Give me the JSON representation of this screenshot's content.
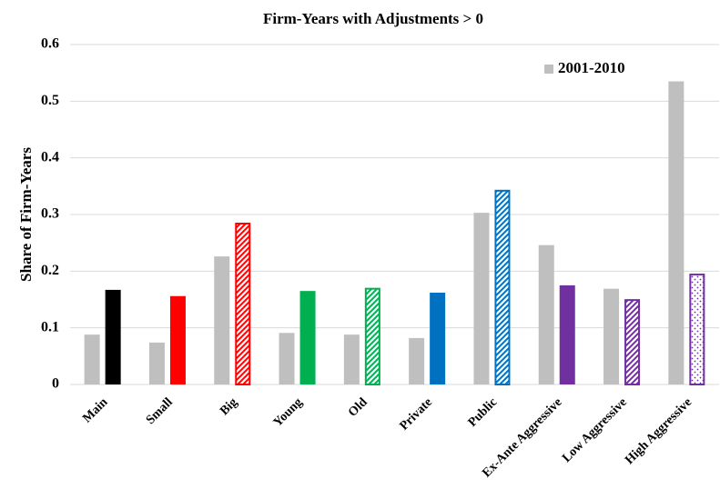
{
  "chart_data": {
    "type": "bar",
    "title": "Firm-Years with Adjustments > 0",
    "y_label": "Share of Firm-Years",
    "categories": [
      "Main",
      "Small",
      "Big",
      "Young",
      "Old",
      "Private",
      "Public",
      "Ex-Ante Aggressive",
      "Low Aggressive",
      "High Aggressive"
    ],
    "series": [
      {
        "name": "2001-2010",
        "color": "#bfbfbf",
        "values": [
          0.088,
          0.074,
          0.226,
          0.091,
          0.088,
          0.082,
          0.303,
          0.246,
          0.169,
          0.535
        ]
      },
      {
        "colors": [
          "#000000",
          "#ff0000",
          "#ff0000",
          "#00b050",
          "#00b050",
          "#0070c0",
          "#0070c0",
          "#7030a0",
          "#7030a0",
          "#7030a0"
        ],
        "patterns": [
          "solid",
          "solid",
          "hatch",
          "solid",
          "hatch",
          "solid",
          "hatch",
          "solid",
          "hatch",
          "dots"
        ],
        "values": [
          0.167,
          0.156,
          0.284,
          0.165,
          0.169,
          0.162,
          0.342,
          0.175,
          0.149,
          0.194
        ]
      }
    ],
    "ylim": [
      0,
      0.6
    ],
    "yticks": [
      0,
      0.1,
      0.2,
      0.3,
      0.4,
      0.5,
      0.6
    ],
    "grid": true,
    "legend": "top-right"
  }
}
